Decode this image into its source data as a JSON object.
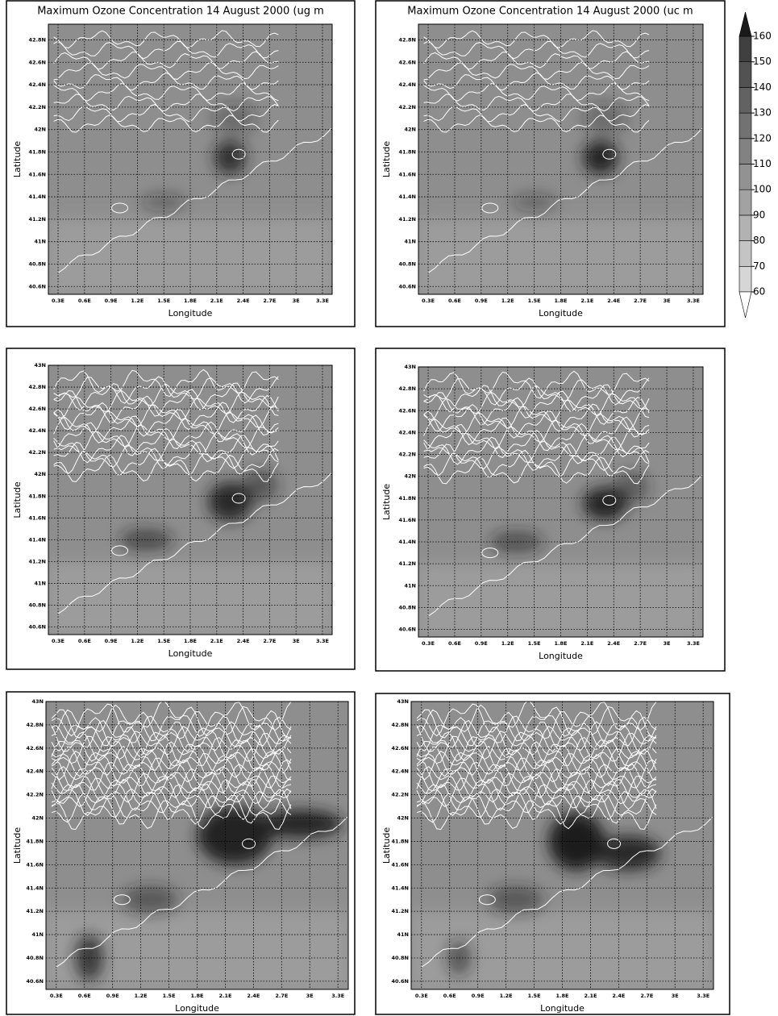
{
  "chart_data": [
    {
      "type": "contour",
      "title": "Maximum Ozone Concentration 14 August 2000 (ug m",
      "xlabel": "Longitude",
      "ylabel": "Latitude",
      "xlim": [
        0.19,
        3.41
      ],
      "ylim": [
        40.53,
        42.94
      ],
      "xticks": [
        {
          "value": 0.3,
          "label": "0.3E"
        },
        {
          "value": 0.6,
          "label": "0.6E"
        },
        {
          "value": 0.9,
          "label": "0.9E"
        },
        {
          "value": 1.2,
          "label": "1.2E"
        },
        {
          "value": 1.5,
          "label": "1.5E"
        },
        {
          "value": 1.8,
          "label": "1.8E"
        },
        {
          "value": 2.1,
          "label": "2.1E"
        },
        {
          "value": 2.4,
          "label": "2.4E"
        },
        {
          "value": 2.7,
          "label": "2.7E"
        },
        {
          "value": 3,
          "label": "3E"
        },
        {
          "value": 3.3,
          "label": "3.3E"
        }
      ],
      "yticks": [
        {
          "value": 40.6,
          "label": "40.6N"
        },
        {
          "value": 40.8,
          "label": "40.8N"
        },
        {
          "value": 41,
          "label": "41N"
        },
        {
          "value": 41.2,
          "label": "41.2N"
        },
        {
          "value": 41.4,
          "label": "41.4N"
        },
        {
          "value": 41.6,
          "label": "41.6N"
        },
        {
          "value": 41.8,
          "label": "41.8N"
        },
        {
          "value": 42,
          "label": "42N"
        },
        {
          "value": 42.2,
          "label": "42.2N"
        },
        {
          "value": 42.4,
          "label": "42.4N"
        },
        {
          "value": 42.6,
          "label": "42.6N"
        },
        {
          "value": 42.8,
          "label": "42.8N"
        }
      ],
      "grid": true
    },
    {
      "type": "contour",
      "title": "Maximum Ozone Concentration 14 August 2000 (uc m",
      "xlabel": "Longitude",
      "ylabel": "Latitude",
      "xlim": [
        0.19,
        3.41
      ],
      "ylim": [
        40.53,
        42.94
      ],
      "xticks": [
        {
          "value": 0.3,
          "label": "0.3E"
        },
        {
          "value": 0.6,
          "label": "0.6E"
        },
        {
          "value": 0.9,
          "label": "0.9E"
        },
        {
          "value": 1.2,
          "label": "1.2E"
        },
        {
          "value": 1.5,
          "label": "1.5E"
        },
        {
          "value": 1.8,
          "label": "1.8E"
        },
        {
          "value": 2.1,
          "label": "2.1E"
        },
        {
          "value": 2.4,
          "label": "2.4E"
        },
        {
          "value": 2.7,
          "label": "2.7E"
        },
        {
          "value": 3,
          "label": "3E"
        },
        {
          "value": 3.3,
          "label": "3.3E"
        }
      ],
      "yticks": [
        {
          "value": 40.6,
          "label": "40.6N"
        },
        {
          "value": 40.8,
          "label": "40.8N"
        },
        {
          "value": 41,
          "label": "41N"
        },
        {
          "value": 41.2,
          "label": "41.2N"
        },
        {
          "value": 41.4,
          "label": "41.4N"
        },
        {
          "value": 41.6,
          "label": "41.6N"
        },
        {
          "value": 41.8,
          "label": "41.8N"
        },
        {
          "value": 42,
          "label": "42N"
        },
        {
          "value": 42.2,
          "label": "42.2N"
        },
        {
          "value": 42.4,
          "label": "42.4N"
        },
        {
          "value": 42.6,
          "label": "42.6N"
        },
        {
          "value": 42.8,
          "label": "42.8N"
        }
      ],
      "grid": true
    },
    {
      "type": "contour",
      "xlabel": "Longitude",
      "ylabel": "Latitude",
      "xlim": [
        0.19,
        3.41
      ],
      "ylim": [
        40.53,
        43.0
      ],
      "xticks": [
        {
          "value": 0.3,
          "label": "0.3E"
        },
        {
          "value": 0.6,
          "label": "0.6E"
        },
        {
          "value": 0.9,
          "label": "0.9E"
        },
        {
          "value": 1.2,
          "label": "1.2E"
        },
        {
          "value": 1.5,
          "label": "1.5E"
        },
        {
          "value": 1.8,
          "label": "1.8E"
        },
        {
          "value": 2.1,
          "label": "2.1E"
        },
        {
          "value": 2.4,
          "label": "2.4E"
        },
        {
          "value": 2.7,
          "label": "2.7E"
        },
        {
          "value": 3,
          "label": "3E"
        },
        {
          "value": 3.3,
          "label": "3.3E"
        }
      ],
      "yticks": [
        {
          "value": 40.6,
          "label": "40.6N"
        },
        {
          "value": 40.8,
          "label": "40.8N"
        },
        {
          "value": 41,
          "label": "41N"
        },
        {
          "value": 41.2,
          "label": "41.2N"
        },
        {
          "value": 41.4,
          "label": "41.4N"
        },
        {
          "value": 41.6,
          "label": "41.6N"
        },
        {
          "value": 41.8,
          "label": "41.8N"
        },
        {
          "value": 42,
          "label": "42N"
        },
        {
          "value": 42.2,
          "label": "42.2N"
        },
        {
          "value": 42.4,
          "label": "42.4N"
        },
        {
          "value": 42.6,
          "label": "42.6N"
        },
        {
          "value": 42.8,
          "label": "42.8N"
        },
        {
          "value": 43,
          "label": "43N"
        }
      ],
      "grid": true
    },
    {
      "type": "contour",
      "xlabel": "Longitude",
      "ylabel": "Latitude",
      "xlim": [
        0.19,
        3.41
      ],
      "ylim": [
        40.53,
        43.0
      ],
      "xticks": [
        {
          "value": 0.3,
          "label": "0.3E"
        },
        {
          "value": 0.6,
          "label": "0.6E"
        },
        {
          "value": 0.9,
          "label": "0.9E"
        },
        {
          "value": 1.2,
          "label": "1.2E"
        },
        {
          "value": 1.5,
          "label": "1.5E"
        },
        {
          "value": 1.8,
          "label": "1.8E"
        },
        {
          "value": 2.1,
          "label": "2.1E"
        },
        {
          "value": 2.4,
          "label": "2.4E"
        },
        {
          "value": 2.7,
          "label": "2.7E"
        },
        {
          "value": 3,
          "label": "3E"
        },
        {
          "value": 3.3,
          "label": "3.3E"
        }
      ],
      "yticks": [
        {
          "value": 40.6,
          "label": "40.6N"
        },
        {
          "value": 40.8,
          "label": "40.8N"
        },
        {
          "value": 41,
          "label": "41N"
        },
        {
          "value": 41.2,
          "label": "41.2N"
        },
        {
          "value": 41.4,
          "label": "41.4N"
        },
        {
          "value": 41.6,
          "label": "41.6N"
        },
        {
          "value": 41.8,
          "label": "41.8N"
        },
        {
          "value": 42,
          "label": "42N"
        },
        {
          "value": 42.2,
          "label": "42.2N"
        },
        {
          "value": 42.4,
          "label": "42.4N"
        },
        {
          "value": 42.6,
          "label": "42.6N"
        },
        {
          "value": 42.8,
          "label": "42.8N"
        },
        {
          "value": 43,
          "label": "43N"
        }
      ],
      "grid": true
    },
    {
      "type": "contour",
      "xlabel": "Longitude",
      "ylabel": "Latitude",
      "xlim": [
        0.19,
        3.41
      ],
      "ylim": [
        40.53,
        43.0
      ],
      "xticks": [
        {
          "value": 0.3,
          "label": "0.3E"
        },
        {
          "value": 0.6,
          "label": "0.6E"
        },
        {
          "value": 0.9,
          "label": "0.9E"
        },
        {
          "value": 1.2,
          "label": "1.2E"
        },
        {
          "value": 1.5,
          "label": "1.5E"
        },
        {
          "value": 1.8,
          "label": "1.8E"
        },
        {
          "value": 2.1,
          "label": "2.1E"
        },
        {
          "value": 2.4,
          "label": "2.4E"
        },
        {
          "value": 2.7,
          "label": "2.7E"
        },
        {
          "value": 3,
          "label": "3E"
        },
        {
          "value": 3.3,
          "label": "3.3E"
        }
      ],
      "yticks": [
        {
          "value": 40.6,
          "label": "40.6N"
        },
        {
          "value": 40.8,
          "label": "40.8N"
        },
        {
          "value": 41,
          "label": "41N"
        },
        {
          "value": 41.2,
          "label": "41.2N"
        },
        {
          "value": 41.4,
          "label": "41.4N"
        },
        {
          "value": 41.6,
          "label": "41.6N"
        },
        {
          "value": 41.8,
          "label": "41.8N"
        },
        {
          "value": 42,
          "label": "42N"
        },
        {
          "value": 42.2,
          "label": "42.2N"
        },
        {
          "value": 42.4,
          "label": "42.4N"
        },
        {
          "value": 42.6,
          "label": "42.6N"
        },
        {
          "value": 42.8,
          "label": "42.8N"
        },
        {
          "value": 43,
          "label": "43N"
        }
      ],
      "grid": true
    },
    {
      "type": "contour",
      "xlabel": "Longitude",
      "ylabel": "Latitude",
      "xlim": [
        0.19,
        3.41
      ],
      "ylim": [
        40.53,
        43.0
      ],
      "xticks": [
        {
          "value": 0.3,
          "label": "0.3E"
        },
        {
          "value": 0.6,
          "label": "0.6E"
        },
        {
          "value": 0.9,
          "label": "0.9E"
        },
        {
          "value": 1.2,
          "label": "1.2E"
        },
        {
          "value": 1.5,
          "label": "1.5E"
        },
        {
          "value": 1.8,
          "label": "1.8E"
        },
        {
          "value": 2.1,
          "label": "2.1E"
        },
        {
          "value": 2.4,
          "label": "2.4E"
        },
        {
          "value": 2.7,
          "label": "2.7E"
        },
        {
          "value": 3,
          "label": "3E"
        },
        {
          "value": 3.3,
          "label": "3.3E"
        }
      ],
      "yticks": [
        {
          "value": 40.6,
          "label": "40.6N"
        },
        {
          "value": 40.8,
          "label": "40.8N"
        },
        {
          "value": 41,
          "label": "41N"
        },
        {
          "value": 41.2,
          "label": "41.2N"
        },
        {
          "value": 41.4,
          "label": "41.4N"
        },
        {
          "value": 41.6,
          "label": "41.6N"
        },
        {
          "value": 41.8,
          "label": "41.8N"
        },
        {
          "value": 42,
          "label": "42N"
        },
        {
          "value": 42.2,
          "label": "42.2N"
        },
        {
          "value": 42.4,
          "label": "42.4N"
        },
        {
          "value": 42.6,
          "label": "42.6N"
        },
        {
          "value": 42.8,
          "label": "42.8N"
        },
        {
          "value": 43,
          "label": "43N"
        }
      ],
      "grid": true
    }
  ],
  "colorbar": {
    "ticks": [
      60,
      70,
      80,
      90,
      100,
      110,
      120,
      130,
      140,
      150,
      160
    ],
    "colors": [
      "#d6d6d6",
      "#c4c4c4",
      "#b2b2b2",
      "#a2a2a2",
      "#929292",
      "#828282",
      "#727272",
      "#626262",
      "#525252",
      "#404040"
    ],
    "under_color": "#ffffff",
    "over_color": "#1a1a1a"
  }
}
